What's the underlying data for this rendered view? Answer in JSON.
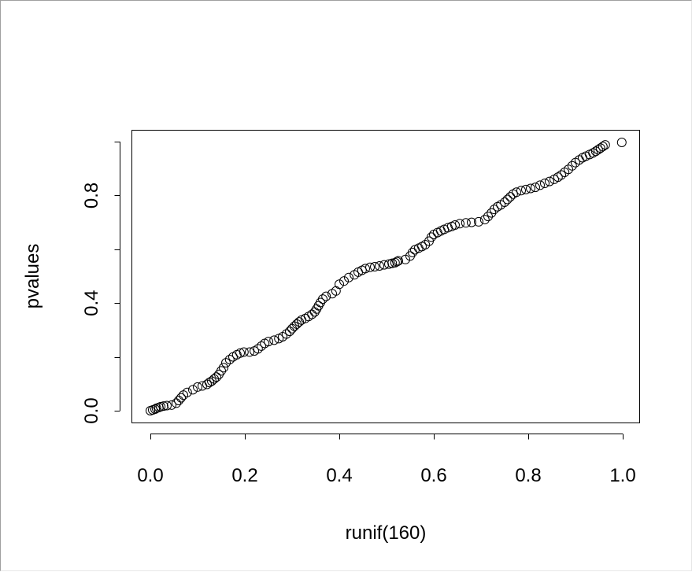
{
  "chart_data": {
    "type": "scatter",
    "title": "",
    "xlabel": "runif(160)",
    "ylabel": "pvalues",
    "xlim": [
      0,
      1
    ],
    "ylim": [
      0,
      1
    ],
    "x_ticks": [
      0.0,
      0.2,
      0.4,
      0.6,
      0.8,
      1.0
    ],
    "x_tick_labels": [
      "0.0",
      "0.2",
      "0.4",
      "0.6",
      "0.8",
      "1.0"
    ],
    "y_ticks": [
      0.0,
      0.2,
      0.4,
      0.6,
      0.8,
      1.0
    ],
    "y_tick_labels": [
      "0.0",
      "",
      "0.4",
      "",
      "0.8",
      ""
    ],
    "grid": false,
    "legend": "none",
    "marker": "open-circle",
    "point_color": "#000000",
    "points": [
      [
        0.0,
        0.0
      ],
      [
        0.005,
        0.003
      ],
      [
        0.01,
        0.006
      ],
      [
        0.013,
        0.009
      ],
      [
        0.018,
        0.012
      ],
      [
        0.022,
        0.015
      ],
      [
        0.028,
        0.017
      ],
      [
        0.035,
        0.019
      ],
      [
        0.045,
        0.021
      ],
      [
        0.055,
        0.028
      ],
      [
        0.06,
        0.038
      ],
      [
        0.065,
        0.048
      ],
      [
        0.07,
        0.058
      ],
      [
        0.078,
        0.068
      ],
      [
        0.09,
        0.078
      ],
      [
        0.1,
        0.088
      ],
      [
        0.11,
        0.092
      ],
      [
        0.12,
        0.098
      ],
      [
        0.125,
        0.105
      ],
      [
        0.13,
        0.11
      ],
      [
        0.135,
        0.118
      ],
      [
        0.14,
        0.125
      ],
      [
        0.145,
        0.135
      ],
      [
        0.15,
        0.148
      ],
      [
        0.155,
        0.16
      ],
      [
        0.16,
        0.178
      ],
      [
        0.168,
        0.19
      ],
      [
        0.175,
        0.2
      ],
      [
        0.183,
        0.208
      ],
      [
        0.19,
        0.214
      ],
      [
        0.198,
        0.218
      ],
      [
        0.21,
        0.218
      ],
      [
        0.22,
        0.222
      ],
      [
        0.228,
        0.23
      ],
      [
        0.235,
        0.24
      ],
      [
        0.242,
        0.25
      ],
      [
        0.25,
        0.257
      ],
      [
        0.262,
        0.262
      ],
      [
        0.272,
        0.268
      ],
      [
        0.28,
        0.275
      ],
      [
        0.288,
        0.285
      ],
      [
        0.295,
        0.295
      ],
      [
        0.3,
        0.305
      ],
      [
        0.305,
        0.314
      ],
      [
        0.31,
        0.322
      ],
      [
        0.315,
        0.33
      ],
      [
        0.32,
        0.337
      ],
      [
        0.328,
        0.343
      ],
      [
        0.335,
        0.35
      ],
      [
        0.342,
        0.358
      ],
      [
        0.348,
        0.367
      ],
      [
        0.352,
        0.378
      ],
      [
        0.356,
        0.39
      ],
      [
        0.36,
        0.402
      ],
      [
        0.365,
        0.415
      ],
      [
        0.372,
        0.425
      ],
      [
        0.385,
        0.435
      ],
      [
        0.393,
        0.445
      ],
      [
        0.4,
        0.47
      ],
      [
        0.41,
        0.482
      ],
      [
        0.42,
        0.495
      ],
      [
        0.432,
        0.505
      ],
      [
        0.44,
        0.515
      ],
      [
        0.448,
        0.522
      ],
      [
        0.455,
        0.528
      ],
      [
        0.465,
        0.533
      ],
      [
        0.475,
        0.535
      ],
      [
        0.485,
        0.538
      ],
      [
        0.495,
        0.542
      ],
      [
        0.505,
        0.545
      ],
      [
        0.512,
        0.548
      ],
      [
        0.518,
        0.55
      ],
      [
        0.522,
        0.554
      ],
      [
        0.525,
        0.557
      ],
      [
        0.54,
        0.562
      ],
      [
        0.55,
        0.575
      ],
      [
        0.555,
        0.588
      ],
      [
        0.56,
        0.598
      ],
      [
        0.568,
        0.604
      ],
      [
        0.575,
        0.61
      ],
      [
        0.582,
        0.617
      ],
      [
        0.59,
        0.63
      ],
      [
        0.595,
        0.645
      ],
      [
        0.6,
        0.655
      ],
      [
        0.608,
        0.662
      ],
      [
        0.615,
        0.668
      ],
      [
        0.622,
        0.674
      ],
      [
        0.63,
        0.68
      ],
      [
        0.638,
        0.685
      ],
      [
        0.645,
        0.69
      ],
      [
        0.655,
        0.695
      ],
      [
        0.668,
        0.698
      ],
      [
        0.68,
        0.7
      ],
      [
        0.695,
        0.702
      ],
      [
        0.708,
        0.71
      ],
      [
        0.715,
        0.722
      ],
      [
        0.722,
        0.735
      ],
      [
        0.728,
        0.748
      ],
      [
        0.735,
        0.758
      ],
      [
        0.742,
        0.765
      ],
      [
        0.75,
        0.775
      ],
      [
        0.756,
        0.785
      ],
      [
        0.762,
        0.795
      ],
      [
        0.768,
        0.805
      ],
      [
        0.775,
        0.812
      ],
      [
        0.785,
        0.818
      ],
      [
        0.795,
        0.822
      ],
      [
        0.805,
        0.826
      ],
      [
        0.815,
        0.83
      ],
      [
        0.825,
        0.838
      ],
      [
        0.835,
        0.845
      ],
      [
        0.845,
        0.852
      ],
      [
        0.855,
        0.86
      ],
      [
        0.863,
        0.868
      ],
      [
        0.87,
        0.876
      ],
      [
        0.877,
        0.886
      ],
      [
        0.885,
        0.897
      ],
      [
        0.893,
        0.91
      ],
      [
        0.9,
        0.922
      ],
      [
        0.908,
        0.932
      ],
      [
        0.915,
        0.94
      ],
      [
        0.922,
        0.946
      ],
      [
        0.93,
        0.952
      ],
      [
        0.937,
        0.958
      ],
      [
        0.943,
        0.964
      ],
      [
        0.948,
        0.97
      ],
      [
        0.953,
        0.976
      ],
      [
        0.958,
        0.982
      ],
      [
        0.963,
        0.988
      ],
      [
        0.998,
        0.997
      ]
    ]
  }
}
